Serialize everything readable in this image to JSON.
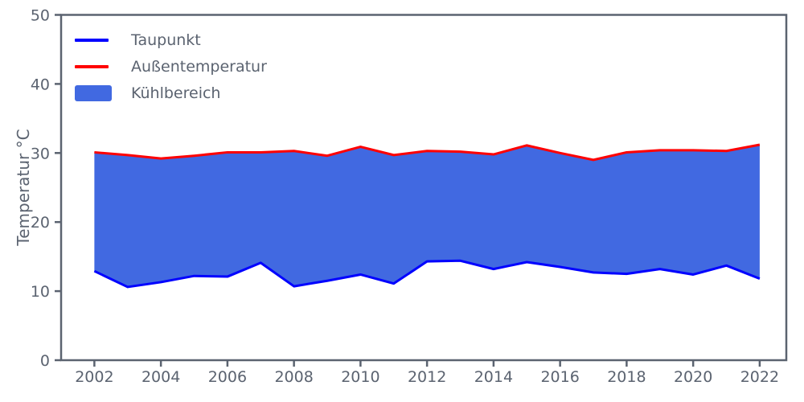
{
  "y_axis": {
    "label": "Temperatur °C",
    "ticks": [
      0,
      10,
      20,
      30,
      40,
      50
    ],
    "range": [
      0,
      50
    ]
  },
  "x_axis": {
    "ticks": [
      2002,
      2004,
      2006,
      2008,
      2010,
      2012,
      2014,
      2016,
      2018,
      2020,
      2022
    ],
    "range": [
      2001,
      2022.8
    ]
  },
  "legend": [
    {
      "label": "Taupunkt",
      "marker": "line",
      "color": "#0000ff"
    },
    {
      "label": "Außentemperatur",
      "marker": "line",
      "color": "#ff0000"
    },
    {
      "label": "Kühlbereich",
      "marker": "patch",
      "color": "#4169e1"
    }
  ],
  "colors": {
    "taupunkt_line": "#0000ff",
    "aussentemperatur_line": "#ff0000",
    "kuehlbereich_fill": "#4169e1",
    "axis": "#5b6370",
    "text": "#5b6370",
    "background": "#ffffff"
  },
  "chart_data": {
    "type": "area",
    "title": "",
    "xlabel": "",
    "ylabel": "Temperatur °C",
    "xlim": [
      2001,
      2022.8
    ],
    "ylim": [
      0,
      50
    ],
    "grid": false,
    "legend_position": "upper left",
    "x": [
      2002,
      2003,
      2004,
      2005,
      2006,
      2007,
      2008,
      2009,
      2010,
      2011,
      2012,
      2013,
      2014,
      2015,
      2016,
      2017,
      2018,
      2019,
      2020,
      2021,
      2022
    ],
    "series": [
      {
        "name": "Taupunkt",
        "type": "line",
        "color": "#0000ff",
        "values": [
          12.9,
          10.6,
          11.3,
          12.2,
          12.1,
          14.1,
          10.7,
          11.5,
          12.4,
          11.1,
          14.3,
          14.4,
          13.2,
          14.2,
          13.5,
          12.7,
          12.5,
          13.2,
          12.4,
          13.7,
          11.8
        ]
      },
      {
        "name": "Außentemperatur",
        "type": "line",
        "color": "#ff0000",
        "values": [
          30.1,
          29.7,
          29.2,
          29.6,
          30.1,
          30.1,
          30.3,
          29.6,
          30.9,
          29.7,
          30.3,
          30.2,
          29.8,
          31.1,
          30.0,
          29.0,
          30.1,
          30.4,
          30.4,
          30.3,
          31.2
        ]
      },
      {
        "name": "Kühlbereich",
        "type": "area_between",
        "color": "#4169e1",
        "lower": "Taupunkt",
        "upper": "Außentemperatur"
      }
    ]
  }
}
